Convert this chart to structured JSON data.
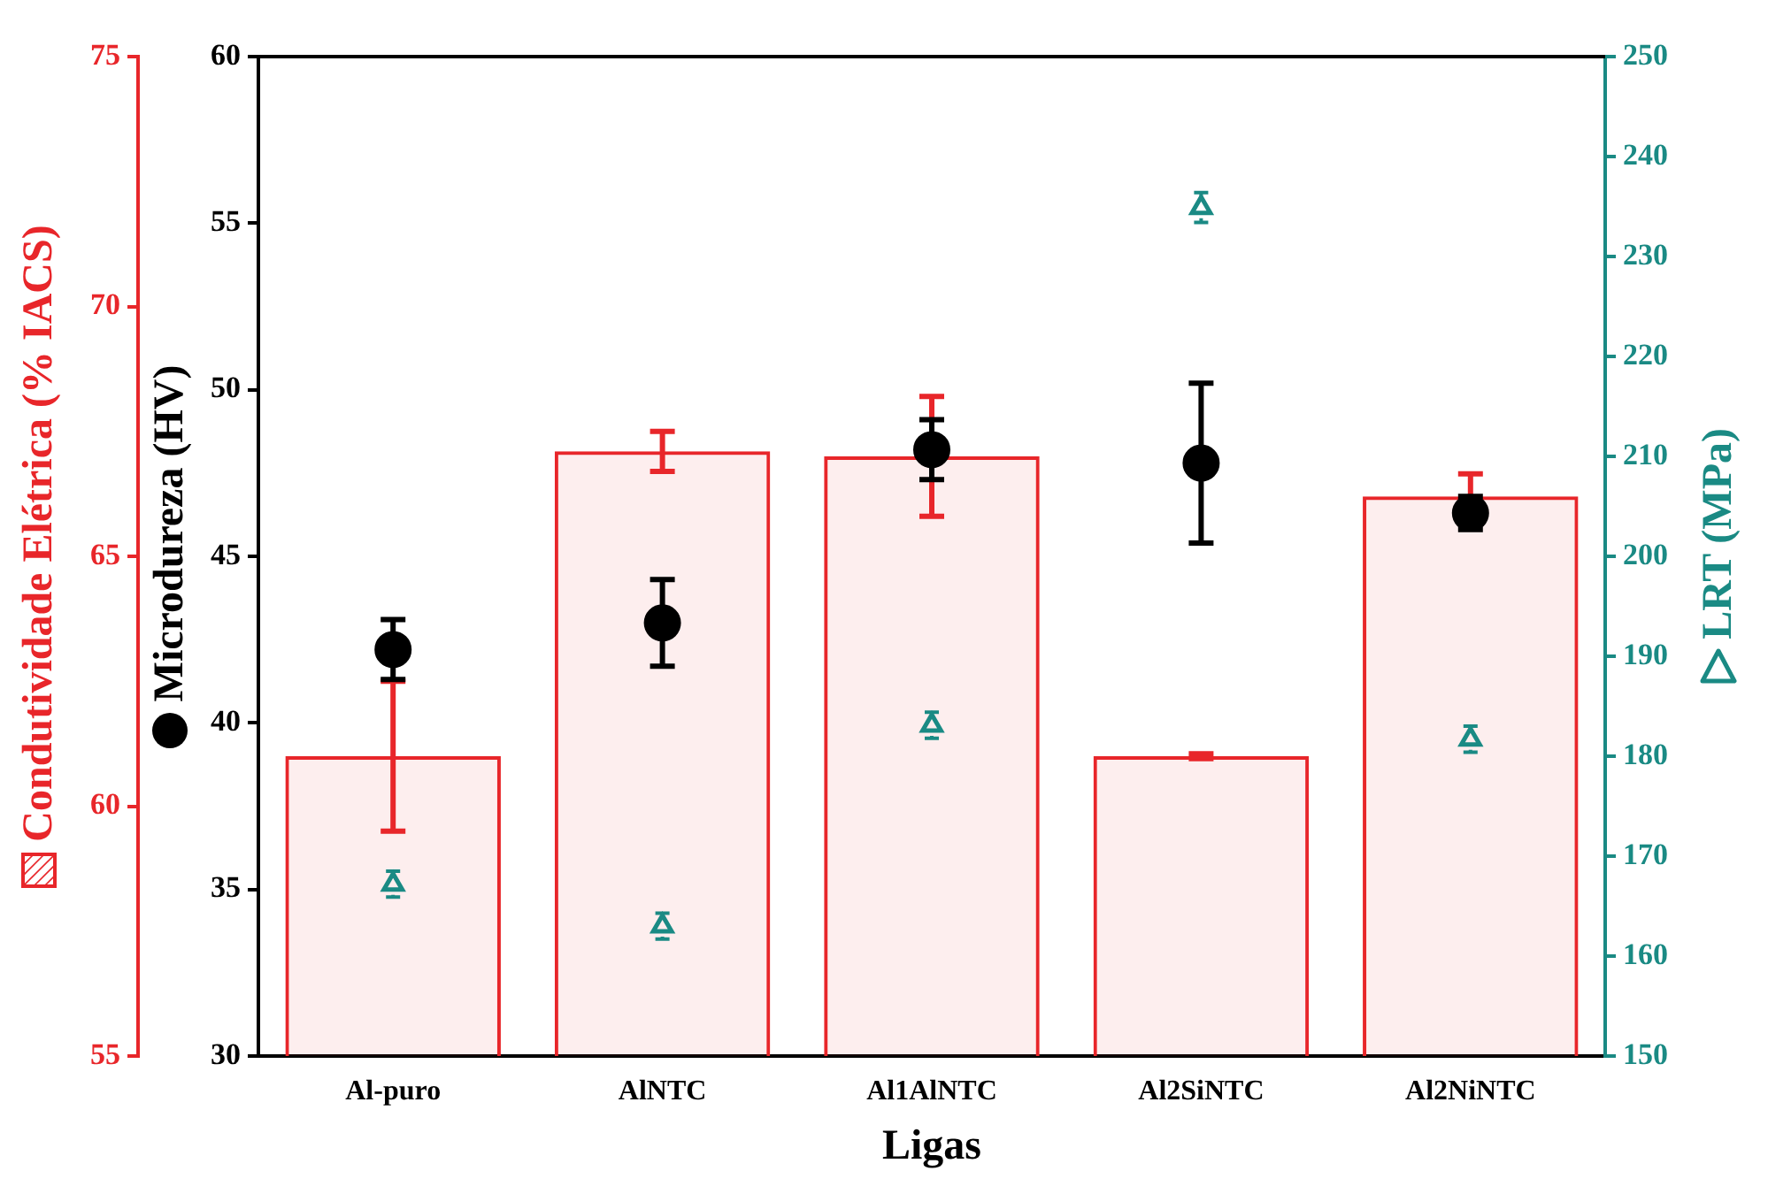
{
  "chart_data": {
    "type": "bar",
    "xlabel": "Ligas",
    "ylabel": "Microdureza (HV)",
    "y2label": "LRT (MPa)",
    "y3label": "Condutividade Elétrica (% IACS)",
    "categories": [
      "Al-puro",
      "AlNTC",
      "Al1AlNTC",
      "Al2SiNTC",
      "Al2NiNTC"
    ],
    "series": [
      {
        "color": "#e8262a",
        "axis": "y3",
        "values": [
          61.0,
          67.1,
          67.0,
          61.0,
          66.2
        ],
        "errors": [
          1.5,
          0.4,
          1.2,
          0.05,
          0.45
        ]
      },
      {
        "type": "scatter",
        "color": "#000000",
        "axis": "y",
        "marker": "circle",
        "values": [
          42.2,
          43.0,
          48.2,
          47.8,
          46.3
        ],
        "errors": [
          0.9,
          1.3,
          0.9,
          2.4,
          0.5
        ]
      },
      {
        "type": "scatter",
        "color": "#1a8a84",
        "axis": "y2",
        "marker": "triangle",
        "values": [
          167.2,
          163.0,
          183.1,
          234.9,
          181.7
        ],
        "errors": [
          1.3,
          1.3,
          1.3,
          1.5,
          1.3
        ]
      }
    ],
    "ylim": [
      30,
      60
    ],
    "yticks": [
      30,
      35,
      40,
      45,
      50,
      55,
      60
    ],
    "y2lim": [
      150,
      250
    ],
    "y2ticks": [
      150,
      160,
      170,
      180,
      190,
      200,
      210,
      220,
      230,
      240,
      250
    ],
    "y3lim": [
      55,
      75
    ],
    "y3ticks": [
      55,
      60,
      65,
      70,
      75
    ],
    "grid": false,
    "legend": false
  }
}
